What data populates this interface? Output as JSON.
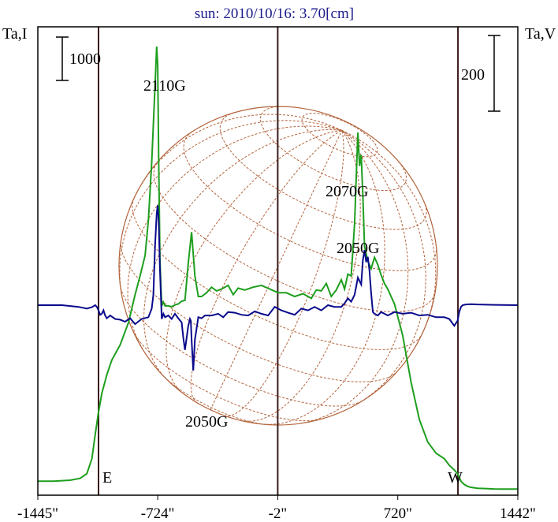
{
  "chart_data": {
    "type": "line",
    "title": "sun: 2010/10/16: 3.70[cm]",
    "ylabel_left": "Ta,I",
    "ylabel_right": "Ta,V",
    "x_ticks": [
      "-1445\"",
      "-724\"",
      "-2\"",
      "720\"",
      "1442\""
    ],
    "x_tick_values": [
      -1445,
      -724,
      -2,
      720,
      1442
    ],
    "xlim": [
      -1445,
      1442
    ],
    "vertical_lines": [
      -1080,
      -2,
      1082
    ],
    "scale_bars": {
      "left": "1000",
      "right": "200"
    },
    "limb_labels": {
      "east": "E",
      "west": "W"
    },
    "annotations": [
      "2110G",
      "2070G",
      "2050G",
      "2050G"
    ],
    "colors": {
      "stokes_i": "#1e9e1e",
      "stokes_v": "#0a0a8c",
      "disk": "#b3643c",
      "frame": "#000000",
      "vline": "#3a1a1a"
    },
    "series": [
      {
        "name": "I",
        "x": [
          -1445,
          -1350,
          -1250,
          -1190,
          -1150,
          -1120,
          -1100,
          -1080,
          -1060,
          -1030,
          -1000,
          -950,
          -900,
          -860,
          -830,
          -800,
          -780,
          -760,
          -740,
          -730,
          -724,
          -718,
          -710,
          -700,
          -690,
          -680,
          -660,
          -640,
          -620,
          -600,
          -580,
          -560,
          -540,
          -520,
          -500,
          -480,
          -460,
          -430,
          -400,
          -370,
          -340,
          -300,
          -270,
          -240,
          -200,
          -150,
          -100,
          -50,
          0,
          50,
          100,
          150,
          200,
          230,
          260,
          290,
          320,
          350,
          380,
          400,
          420,
          440,
          460,
          470,
          480,
          490,
          500,
          510,
          520,
          540,
          560,
          580,
          600,
          620,
          640,
          660,
          700,
          750,
          800,
          850,
          900,
          950,
          1000,
          1030,
          1060,
          1080,
          1090,
          1100,
          1110,
          1120,
          1140,
          1160,
          1200,
          1250,
          1300,
          1350,
          1442
        ],
        "y": [
          50,
          50,
          55,
          65,
          90,
          170,
          300,
          420,
          520,
          620,
          700,
          780,
          900,
          1050,
          1150,
          1260,
          1450,
          1760,
          2170,
          2380,
          2280,
          1750,
          1230,
          990,
          1010,
          990,
          990,
          985,
          995,
          1000,
          1015,
          1020,
          1220,
          1385,
          1150,
          1040,
          1040,
          1060,
          1090,
          1070,
          1080,
          1100,
          1050,
          1085,
          1075,
          1090,
          1100,
          1080,
          1060,
          1060,
          1040,
          1055,
          1030,
          1075,
          1070,
          1110,
          1040,
          1075,
          1130,
          1080,
          1160,
          1150,
          1430,
          1680,
          1920,
          1740,
          1800,
          1580,
          1310,
          1230,
          1190,
          1250,
          1210,
          1155,
          1110,
          1080,
          1000,
          830,
          580,
          380,
          260,
          200,
          170,
          135,
          110,
          90,
          70,
          50,
          40,
          32,
          22,
          17,
          12,
          10,
          8,
          7,
          7
        ]
      },
      {
        "name": "V",
        "x": [
          -1445,
          -1300,
          -1200,
          -1150,
          -1120,
          -1100,
          -1090,
          -1080,
          -1070,
          -1060,
          -1050,
          -1040,
          -1030,
          -1010,
          -980,
          -950,
          -920,
          -890,
          -860,
          -820,
          -780,
          -760,
          -750,
          -740,
          -730,
          -724,
          -718,
          -710,
          -700,
          -690,
          -680,
          -660,
          -640,
          -620,
          -600,
          -580,
          -570,
          -560,
          -550,
          -540,
          -535,
          -530,
          -525,
          -520,
          -510,
          -500,
          -480,
          -460,
          -440,
          -400,
          -360,
          -330,
          -300,
          -260,
          -220,
          -180,
          -140,
          -100,
          -60,
          -20,
          20,
          60,
          100,
          140,
          180,
          220,
          260,
          300,
          340,
          380,
          400,
          420,
          440,
          460,
          480,
          500,
          510,
          520,
          530,
          540,
          550,
          560,
          570,
          580,
          600,
          620,
          640,
          660,
          700,
          750,
          800,
          850,
          900,
          950,
          1000,
          1030,
          1060,
          1080,
          1090,
          1100,
          1110,
          1130,
          1160,
          1200,
          1300,
          1442
        ],
        "y": [
          0,
          0,
          -5,
          -10,
          -6,
          0,
          -5,
          -15,
          -28,
          -25,
          -15,
          -30,
          -38,
          -30,
          -40,
          -42,
          -48,
          -38,
          -55,
          -40,
          -35,
          -10,
          30,
          170,
          265,
          290,
          240,
          100,
          -40,
          -25,
          -35,
          -30,
          -40,
          -25,
          -38,
          -50,
          -95,
          -130,
          -95,
          -60,
          -50,
          -40,
          -45,
          -100,
          -190,
          -100,
          -35,
          -38,
          -30,
          -30,
          -25,
          -35,
          -20,
          -22,
          -28,
          -30,
          -18,
          -25,
          -30,
          -5,
          -15,
          -22,
          -28,
          -10,
          -15,
          -5,
          -15,
          0,
          -5,
          -5,
          5,
          20,
          10,
          30,
          80,
          60,
          130,
          160,
          125,
          140,
          100,
          35,
          -20,
          -25,
          -30,
          -20,
          -25,
          -30,
          -20,
          -25,
          -22,
          -30,
          -28,
          -35,
          -35,
          -40,
          -60,
          -45,
          -20,
          -5,
          0,
          2,
          3,
          2,
          1,
          0
        ]
      }
    ]
  }
}
